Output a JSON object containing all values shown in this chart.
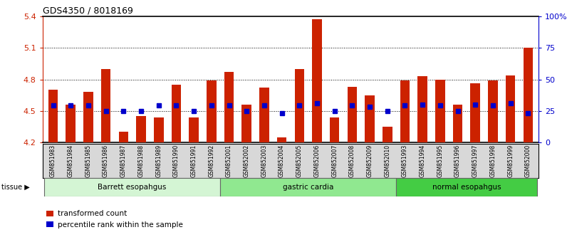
{
  "title": "GDS4350 / 8018169",
  "samples": [
    "GSM851983",
    "GSM851984",
    "GSM851985",
    "GSM851986",
    "GSM851987",
    "GSM851988",
    "GSM851989",
    "GSM851990",
    "GSM851991",
    "GSM851992",
    "GSM852001",
    "GSM852002",
    "GSM852003",
    "GSM852004",
    "GSM852005",
    "GSM852006",
    "GSM852007",
    "GSM852008",
    "GSM852009",
    "GSM852010",
    "GSM851993",
    "GSM851994",
    "GSM851995",
    "GSM851996",
    "GSM851997",
    "GSM851998",
    "GSM851999",
    "GSM852000"
  ],
  "red_values": [
    4.7,
    4.56,
    4.68,
    4.9,
    4.3,
    4.45,
    4.44,
    4.75,
    4.44,
    4.79,
    4.87,
    4.56,
    4.72,
    4.25,
    4.9,
    5.37,
    4.44,
    4.73,
    4.65,
    4.35,
    4.79,
    4.83,
    4.8,
    4.56,
    4.76,
    4.79,
    4.84,
    5.1
  ],
  "blue_values": [
    4.55,
    4.55,
    4.55,
    4.5,
    4.5,
    4.5,
    4.55,
    4.55,
    4.5,
    4.55,
    4.55,
    4.5,
    4.55,
    4.48,
    4.55,
    4.57,
    4.5,
    4.55,
    4.54,
    4.5,
    4.55,
    4.56,
    4.55,
    4.5,
    4.56,
    4.55,
    4.57,
    4.48
  ],
  "groups": [
    {
      "label": "Barrett esopahgus",
      "start": 0,
      "end": 9,
      "color": "#d4f5d4"
    },
    {
      "label": "gastric cardia",
      "start": 10,
      "end": 19,
      "color": "#90e890"
    },
    {
      "label": "normal esopahgus",
      "start": 20,
      "end": 27,
      "color": "#44cc44"
    }
  ],
  "ylim": [
    4.2,
    5.4
  ],
  "yticks": [
    4.2,
    4.5,
    4.8,
    5.1,
    5.4
  ],
  "ytick_labels": [
    "4.2",
    "4.5",
    "4.8",
    "5.1",
    "5.4"
  ],
  "y2ticks": [
    0,
    25,
    50,
    75,
    100
  ],
  "y2tick_labels": [
    "0",
    "25",
    "50",
    "75",
    "100%"
  ],
  "hlines": [
    4.5,
    4.8,
    5.1
  ],
  "bar_color": "#cc2200",
  "dot_color": "#0000cc",
  "bg_color": "#ffffff",
  "left_axis_color": "#cc2200",
  "right_axis_color": "#0000cc",
  "tick_bg_color": "#d8d8d8",
  "title_color": "#000000"
}
